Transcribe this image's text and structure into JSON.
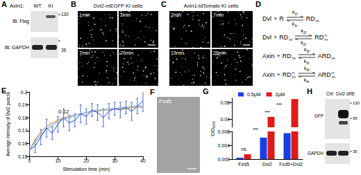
{
  "panels": {
    "A": {
      "label": "A",
      "header": "Axin1:",
      "lanes": [
        "WT",
        "KI"
      ],
      "blots": [
        {
          "name": "IB: Flag",
          "markers": [
            130
          ]
        },
        {
          "name": "IB: GAPDH",
          "markers": [
            35
          ]
        }
      ]
    },
    "B": {
      "label": "B",
      "title": "Dvl2-mEGFP KI cells",
      "frames": [
        "1min",
        "2min",
        "7min",
        "20min"
      ]
    },
    "C": {
      "label": "C",
      "title": "Axin1-tdTomato KI cells",
      "frames": [
        "2min",
        "7min",
        "15min",
        "26min"
      ]
    },
    "D": {
      "label": "D",
      "plus": "+",
      "reactions": [
        {
          "reactant": "Dvl",
          "partner": "R",
          "product": "RD",
          "product_sub": "m",
          "k": "k",
          "kf_sub": "1f",
          "kr_sub": "1r"
        },
        {
          "reactant": "Dvl",
          "partner": "RD",
          "partner_sub": "m",
          "product": "RD",
          "product_sub": "m",
          "product_sup": "n",
          "k": "k",
          "kf_sub": "2f",
          "kr_sub": "2r"
        },
        {
          "reactant": "Axin",
          "partner": "RD",
          "partner_sub": "m",
          "product": "ARD",
          "product_sub": "m",
          "k": "k",
          "kf_sub": "3f",
          "kr_sub": "3r"
        },
        {
          "reactant": "Axin",
          "partner": "RD",
          "partner_sub": "m",
          "partner_sup": "n",
          "product": "ARD",
          "product_sub": "m",
          "product_sup": "n",
          "k": "k",
          "kf_sub": "4f",
          "kr_sub": "4r"
        }
      ]
    },
    "F": {
      "label": "F",
      "text": "Fzd5"
    },
    "H": {
      "label": "H",
      "lanes": [
        "Ctrl",
        "Dvl2 dRE"
      ],
      "blots": [
        {
          "name": "GFP",
          "markers": [
            130,
            95
          ]
        },
        {
          "name": "GAPDH",
          "markers": [
            35
          ]
        }
      ]
    }
  },
  "chart_data": [
    {
      "panel": "E",
      "type": "line",
      "xlabel": "Stimulation time (min)",
      "ylabel": "Average intensity of Dvl2 puncta",
      "annotations": [
        "0.12"
      ],
      "x": [
        0,
        2,
        4,
        6,
        8,
        10,
        12,
        14,
        16,
        18,
        20,
        22,
        24,
        26,
        28,
        30,
        32,
        34,
        36,
        38,
        40
      ],
      "series": [
        {
          "color": "#c9a46c",
          "values": [
            0.155,
            0.163,
            0.169,
            0.173,
            0.176,
            0.178,
            0.18,
            0.181,
            0.182,
            0.183,
            0.184,
            0.185,
            0.185,
            0.186,
            0.186,
            0.187,
            0.187,
            0.187,
            0.188,
            0.188,
            0.188
          ]
        },
        {
          "color": "#8fb8d8",
          "values": [
            0.155,
            0.161,
            0.167,
            0.171,
            0.174,
            0.177,
            0.179,
            0.18,
            0.182,
            0.183,
            0.184,
            0.185,
            0.186,
            0.186,
            0.187,
            0.187,
            0.188,
            0.188,
            0.189,
            0.189,
            0.189
          ]
        },
        {
          "color": "#1f45d8",
          "values": [
            0.155,
            0.158,
            0.165,
            0.172,
            0.168,
            0.175,
            0.18,
            0.176,
            0.178,
            0.183,
            0.181,
            0.186,
            0.184,
            0.18,
            0.185,
            0.187,
            0.186,
            0.188,
            0.185,
            0.189,
            0.193
          ],
          "errors": [
            0.004,
            0.005,
            0.006,
            0.007,
            0.005,
            0.006,
            0.007,
            0.006,
            0.005,
            0.007,
            0.006,
            0.005,
            0.006,
            0.007,
            0.006,
            0.005,
            0.006,
            0.005,
            0.007,
            0.006,
            0.008
          ]
        }
      ],
      "xlim": [
        0,
        40
      ],
      "xticks": [
        0,
        10,
        20,
        30,
        40
      ],
      "ylim": [
        0.15,
        0.2
      ],
      "yticks": [
        0.15,
        0.16,
        0.17,
        0.18,
        0.19,
        0.2
      ],
      "grid": false
    },
    {
      "panel": "G",
      "type": "bar",
      "ylabel": "OD₆₀₀",
      "categories": [
        "Fzd5",
        "Dvl2",
        "Fzd5+Dvl2"
      ],
      "series": [
        {
          "name": "0.5μM",
          "color": "#1a3fe0",
          "values": [
            0.0004,
            0.0062,
            0.0075
          ]
        },
        {
          "name": "2μM",
          "color": "#e01a1a",
          "values": [
            0.0014,
            0.045,
            0.088
          ]
        }
      ],
      "segments": [
        {
          "ylim": [
            0.02,
            0.09
          ],
          "yticks": [
            0.04,
            0.08
          ]
        },
        {
          "ylim": [
            0,
            0.008
          ],
          "yticks": [
            {
              "value": 0,
              "label": "0.000"
            },
            {
              "value": 0.004,
              "label": "0.004"
            },
            {
              "value": 0.008,
              "label": "0.008"
            }
          ]
        }
      ],
      "annotations": [
        "ns",
        "***",
        "***",
        "***"
      ],
      "legend": "top",
      "grid": false
    }
  ]
}
